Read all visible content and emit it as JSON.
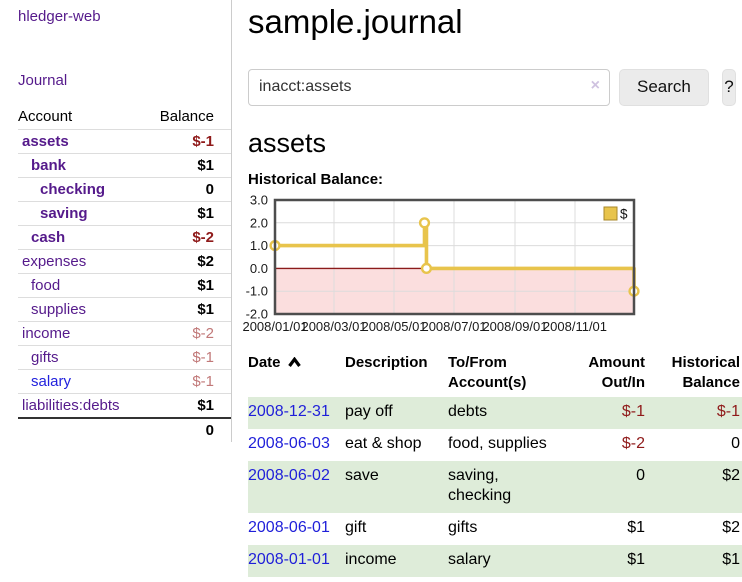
{
  "sidebar": {
    "brand": "hledger-web",
    "nav": {
      "journal": "Journal"
    },
    "accounts_table": {
      "col_account": "Account",
      "col_balance": "Balance",
      "rows": [
        {
          "name": "assets",
          "depth": 0,
          "bold": true,
          "balance": "$-1",
          "balance_class": "neg-strong"
        },
        {
          "name": "bank",
          "depth": 1,
          "bold": true,
          "balance": "$1",
          "balance_class": "pos"
        },
        {
          "name": "checking",
          "depth": 2,
          "bold": true,
          "balance": "0",
          "balance_class": "pos"
        },
        {
          "name": "saving",
          "depth": 2,
          "bold": true,
          "balance": "$1",
          "balance_class": "pos"
        },
        {
          "name": "cash",
          "depth": 1,
          "bold": true,
          "balance": "$-2",
          "balance_class": "neg-strong"
        },
        {
          "name": "expenses",
          "depth": 0,
          "bold": false,
          "balance": "$2",
          "balance_class": "pos"
        },
        {
          "name": "food",
          "depth": 1,
          "bold": false,
          "balance": "$1",
          "balance_class": "pos"
        },
        {
          "name": "supplies",
          "depth": 1,
          "bold": false,
          "balance": "$1",
          "balance_class": "pos"
        },
        {
          "name": "income",
          "depth": 0,
          "bold": false,
          "balance": "$-2",
          "balance_class": "neg-muted"
        },
        {
          "name": "gifts",
          "depth": 1,
          "bold": false,
          "balance": "$-1",
          "balance_class": "neg-muted"
        },
        {
          "name": "salary",
          "depth": 1,
          "bold": false,
          "balance": "$-1",
          "balance_class": "neg-muted",
          "link": "blue"
        },
        {
          "name": "liabilities:debts",
          "depth": 0,
          "bold": false,
          "balance": "$1",
          "balance_class": "pos"
        }
      ],
      "total": "0"
    }
  },
  "main": {
    "title": "sample.journal",
    "search": {
      "value": "inacct:assets",
      "clear_icon": "×",
      "button": "Search",
      "help_button": "?"
    },
    "account_heading": "assets",
    "chart_heading": "Historical Balance:"
  },
  "chart_data": {
    "type": "line",
    "title": "Historical Balance:",
    "step": true,
    "legend": [
      {
        "label": "$",
        "color": "#e8c44c"
      }
    ],
    "legend_position": "top-right",
    "ylim": [
      -2.0,
      3.0
    ],
    "y_ticks": [
      3.0,
      2.0,
      1.0,
      0.0,
      -1.0,
      -2.0
    ],
    "x_domain_days": [
      0,
      365
    ],
    "x_tick_days": [
      0,
      60,
      121,
      182,
      244,
      305
    ],
    "x_tick_labels": [
      "2008/01/01",
      "2008/03/01",
      "2008/05/01",
      "2008/07/01",
      "2008/09/01",
      "2008/11/01"
    ],
    "grid": true,
    "zero_line": true,
    "negative_region_shaded": true,
    "series": [
      {
        "name": "$",
        "points": [
          {
            "day": 0,
            "date": "2008-01-01",
            "value": 1.0
          },
          {
            "day": 152,
            "date": "2008-06-01",
            "value": 2.0
          },
          {
            "day": 154,
            "date": "2008-06-03",
            "value": 0.0
          },
          {
            "day": 365,
            "date": "2008-12-31",
            "value": -1.0
          }
        ]
      }
    ]
  },
  "register_table": {
    "headers": {
      "date": "Date",
      "description": "Description",
      "tofrom": "To/From Account(s)",
      "amount": "Amount Out/In",
      "historical": "Historical Balance"
    },
    "sort": {
      "column": "date",
      "direction": "asc"
    },
    "rows": [
      {
        "date": "2008-12-31",
        "description": "pay off",
        "tofrom": "debts",
        "amount": "$-1",
        "amount_class": "neg",
        "historical": "$-1",
        "historical_class": "neg"
      },
      {
        "date": "2008-06-03",
        "description": "eat & shop",
        "tofrom": "food, supplies",
        "amount": "$-2",
        "amount_class": "neg",
        "historical": "0",
        "historical_class": ""
      },
      {
        "date": "2008-06-02",
        "description": "save",
        "tofrom": "saving, checking",
        "amount": "0",
        "amount_class": "",
        "historical": "$2",
        "historical_class": ""
      },
      {
        "date": "2008-06-01",
        "description": "gift",
        "tofrom": "gifts",
        "amount": "$1",
        "amount_class": "",
        "historical": "$2",
        "historical_class": ""
      },
      {
        "date": "2008-01-01",
        "description": "income",
        "tofrom": "salary",
        "amount": "$1",
        "amount_class": "",
        "historical": "$1",
        "historical_class": ""
      }
    ]
  },
  "colors": {
    "link_purple": "#551a8b",
    "link_blue": "#1f1fd9",
    "negative_strong": "#8f1a1a",
    "negative_muted": "#c17878",
    "row_stripe_green": "#deecd9",
    "chart_line_gold": "#e8c44c",
    "chart_negative_fill": "#fbdede",
    "chart_zero_line": "#8b1b1b",
    "chart_border": "#4d4d4d",
    "chart_grid": "#dcdcdc"
  }
}
